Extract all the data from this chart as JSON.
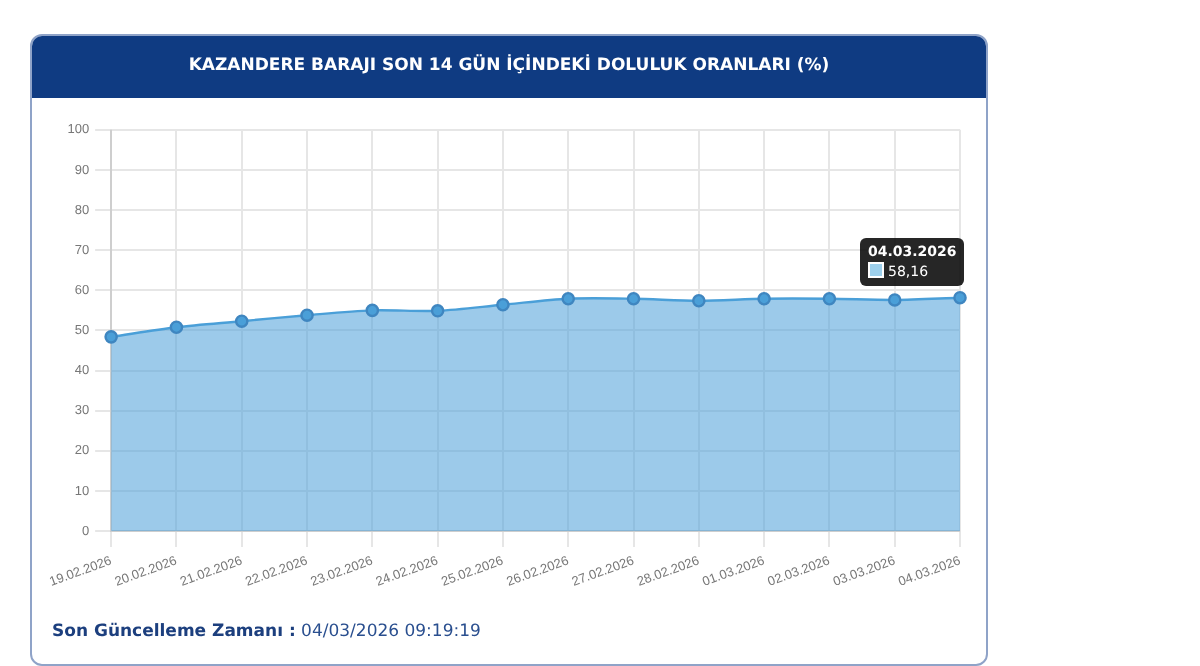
{
  "chart_data": {
    "type": "area",
    "title": "KAZANDERE BARAJI SON 14 GÜN İÇİNDEKİ DOLULUK ORANLARI (%)",
    "categories": [
      "19.02.2026",
      "20.02.2026",
      "21.02.2026",
      "22.02.2026",
      "23.02.2026",
      "24.02.2026",
      "25.02.2026",
      "26.02.2026",
      "27.02.2026",
      "28.02.2026",
      "01.03.2026",
      "02.03.2026",
      "03.03.2026",
      "04.03.2026"
    ],
    "series": [
      {
        "color": "#4a9fd8",
        "values": [
          48.4,
          50.8,
          52.3,
          53.8,
          55.0,
          54.9,
          56.4,
          57.9,
          57.9,
          57.4,
          57.9,
          57.9,
          57.6,
          58.16
        ]
      }
    ],
    "ylim": [
      0,
      100
    ],
    "yticks": [
      0,
      10,
      20,
      30,
      40,
      50,
      60,
      70,
      80,
      90,
      100
    ],
    "grid": true,
    "marker": "circle",
    "annotations": [
      {
        "text": "04.03.2026",
        "x": "04.03.2026",
        "y": 58.16
      },
      {
        "text": "58,16",
        "x": "04.03.2026",
        "y": 58.16
      },
      "Son Güncelleme Zamanı : 04/03/2026 09:19:19"
    ]
  }
}
